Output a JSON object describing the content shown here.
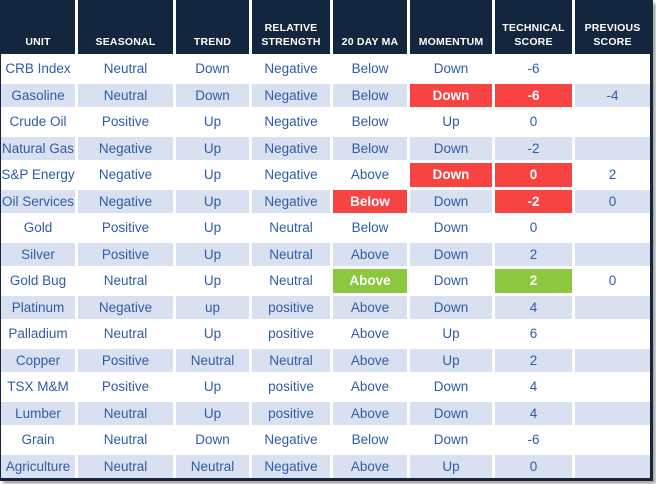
{
  "chart_data": {
    "type": "table",
    "columns": [
      "UNIT",
      "SEASONAL",
      "TREND",
      "RELATIVE STRENGTH",
      "20 DAY MA",
      "MOMENTUM",
      "TECHNICAL SCORE",
      "PREVIOUS SCORE"
    ],
    "column_keys": [
      "unit",
      "seasonal",
      "trend",
      "relative-strength",
      "20-day-ma",
      "momentum",
      "technical-score",
      "previous-score"
    ],
    "rows": [
      {
        "cells": [
          "CRB Index",
          "Neutral",
          "Down",
          "Negative",
          "Below",
          "Down",
          "-6",
          ""
        ],
        "highlights": {}
      },
      {
        "cells": [
          "Gasoline",
          "Neutral",
          "Down",
          "Negative",
          "Below",
          "Down",
          "-6",
          "-4"
        ],
        "highlights": {
          "5": "red",
          "6": "red"
        }
      },
      {
        "cells": [
          "Crude Oil",
          "Positive",
          "Up",
          "Negative",
          "Below",
          "Up",
          "0",
          ""
        ],
        "highlights": {}
      },
      {
        "cells": [
          "Natural Gas",
          "Negative",
          "Up",
          "Negative",
          "Below",
          "Down",
          "-2",
          ""
        ],
        "highlights": {}
      },
      {
        "cells": [
          "S&P Energy",
          "Negative",
          "Up",
          "Negative",
          "Above",
          "Down",
          "0",
          "2"
        ],
        "highlights": {
          "5": "red",
          "6": "red"
        }
      },
      {
        "cells": [
          "Oil Services",
          "Negative",
          "Up",
          "Negative",
          "Below",
          "Down",
          "-2",
          "0"
        ],
        "highlights": {
          "4": "red",
          "6": "red"
        }
      },
      {
        "cells": [
          "Gold",
          "Positive",
          "Up",
          "Neutral",
          "Below",
          "Down",
          "0",
          ""
        ],
        "highlights": {}
      },
      {
        "cells": [
          "Silver",
          "Positive",
          "Up",
          "Neutral",
          "Above",
          "Down",
          "2",
          ""
        ],
        "highlights": {}
      },
      {
        "cells": [
          "Gold Bug",
          "Neutral",
          "Up",
          "Neutral",
          "Above",
          "Down",
          "2",
          "0"
        ],
        "highlights": {
          "4": "green",
          "6": "green"
        }
      },
      {
        "cells": [
          "Platinum",
          "Negative",
          "up",
          "positive",
          "Above",
          "Down",
          "4",
          ""
        ],
        "highlights": {}
      },
      {
        "cells": [
          "Palladium",
          "Neutral",
          "Up",
          "positive",
          "Above",
          "Up",
          "6",
          ""
        ],
        "highlights": {}
      },
      {
        "cells": [
          "Copper",
          "Positive",
          "Neutral",
          "Neutral",
          "Above",
          "Up",
          "2",
          ""
        ],
        "highlights": {}
      },
      {
        "cells": [
          "TSX M&M",
          "Positive",
          "Up",
          "positive",
          "Above",
          "Down",
          "4",
          ""
        ],
        "highlights": {}
      },
      {
        "cells": [
          "Lumber",
          "Neutral",
          "Up",
          "positive",
          "Above",
          "Down",
          "4",
          ""
        ],
        "highlights": {}
      },
      {
        "cells": [
          "Grain",
          "Neutral",
          "Down",
          "Negative",
          "Below",
          "Down",
          "-6",
          ""
        ],
        "highlights": {}
      },
      {
        "cells": [
          "Agriculture",
          "Neutral",
          "Neutral",
          "Negative",
          "Above",
          "Up",
          "0",
          ""
        ],
        "highlights": {}
      }
    ],
    "layout": {
      "alternating_rows": true,
      "header_position": "top",
      "grid_lines": "white-separators"
    }
  },
  "colors": {
    "header_bg": "#13263E",
    "alt_row_bg": "#D9E1F0",
    "body_text": "#2E5CA8",
    "negative_highlight": "#F74342",
    "positive_highlight": "#8DC63F",
    "highlight_text": "#FFFFFF"
  }
}
